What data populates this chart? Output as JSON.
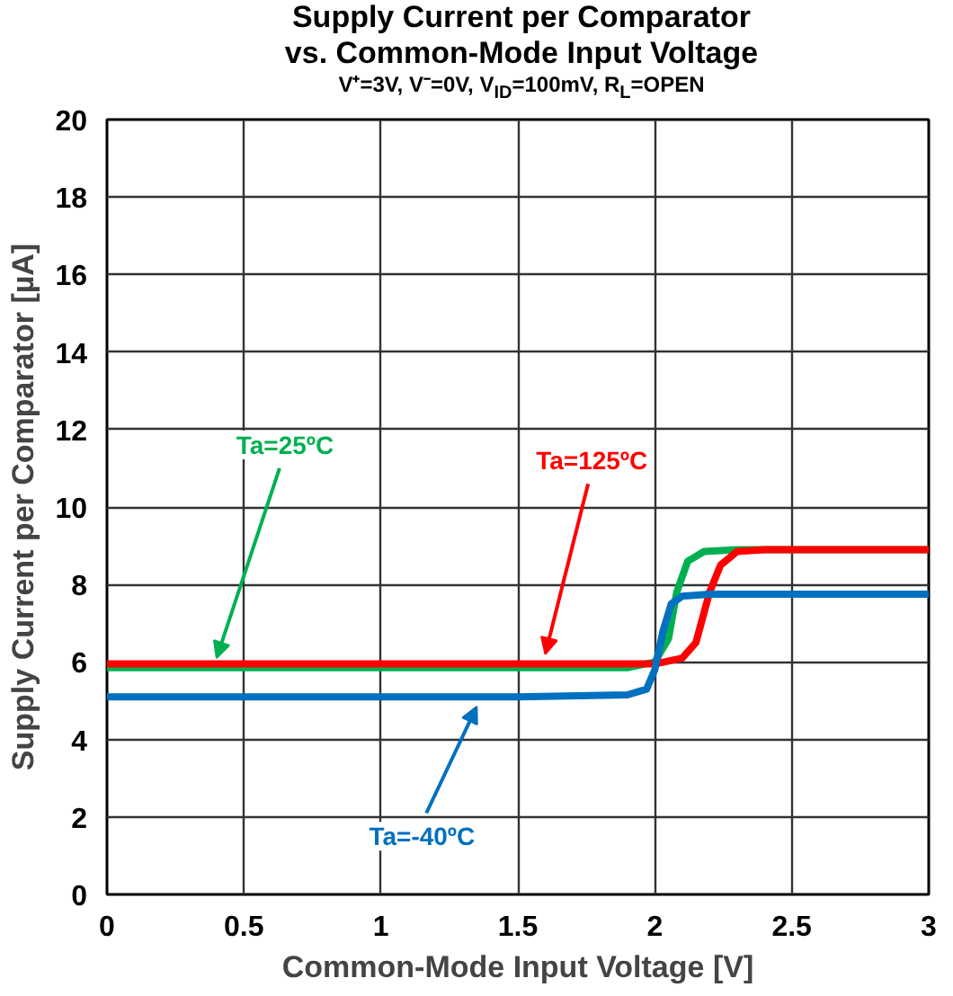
{
  "chart_data": {
    "type": "line",
    "title": "Supply Current per Comparator\nvs. Common-Mode Input Voltage",
    "subtitle": "V⁺=3V, V⁻=0V, V$_{ID}$=100mV, R$_{L}$=OPEN",
    "xlabel": "Common-Mode Input Voltage [V]",
    "ylabel": "Supply Current per Comparator [µA]",
    "xlim": [
      0,
      3
    ],
    "ylim": [
      0,
      20
    ],
    "xticks": [
      0,
      0.5,
      1,
      1.5,
      2,
      2.5,
      3
    ],
    "yticks": [
      0,
      2,
      4,
      6,
      8,
      10,
      12,
      14,
      16,
      18,
      20
    ],
    "grid": true,
    "legend": false,
    "marker": "none",
    "line_style": "solid",
    "series": [
      {
        "name": "Ta=25ºC",
        "color": "#00b050",
        "x": [
          0,
          1.9,
          2.0,
          2.05,
          2.08,
          2.12,
          2.18,
          2.3,
          3
        ],
        "values": [
          5.85,
          5.85,
          6.0,
          6.6,
          7.8,
          8.6,
          8.85,
          8.9,
          8.9
        ]
      },
      {
        "name": "Ta=125ºC",
        "color": "#ff0000",
        "x": [
          0,
          2.0,
          2.1,
          2.15,
          2.2,
          2.24,
          2.3,
          2.4,
          3
        ],
        "values": [
          5.95,
          5.95,
          6.1,
          6.5,
          7.8,
          8.5,
          8.85,
          8.9,
          8.9
        ]
      },
      {
        "name": "Ta=-40ºC",
        "color": "#0070c0",
        "x": [
          0,
          1.5,
          1.9,
          1.97,
          2.0,
          2.03,
          2.06,
          2.1,
          2.2,
          3
        ],
        "values": [
          5.1,
          5.1,
          5.15,
          5.3,
          5.8,
          6.8,
          7.5,
          7.7,
          7.75,
          7.75
        ]
      }
    ]
  }
}
